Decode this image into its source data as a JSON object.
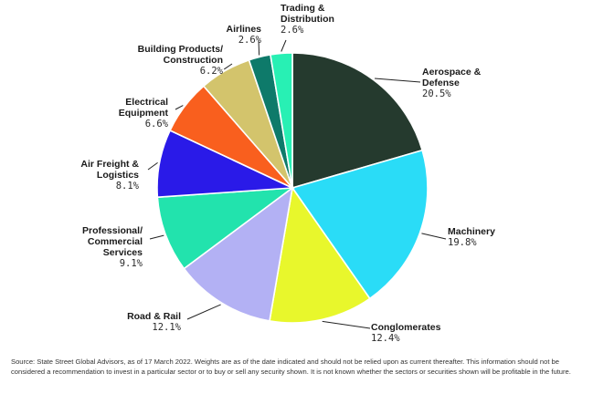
{
  "chart_data": {
    "type": "pie",
    "title": "",
    "slices": [
      {
        "label": [
          "Aerospace &",
          "Defense"
        ],
        "value": 20.5,
        "value_text": "20.5%",
        "color": "#253a2e"
      },
      {
        "label": [
          "Machinery"
        ],
        "value": 19.8,
        "value_text": "19.8%",
        "color": "#2adcf7"
      },
      {
        "label": [
          "Conglomerates"
        ],
        "value": 12.4,
        "value_text": "12.4%",
        "color": "#e8f72c"
      },
      {
        "label": [
          "Road & Rail"
        ],
        "value": 12.1,
        "value_text": "12.1%",
        "color": "#b3b1f4"
      },
      {
        "label": [
          "Professional/",
          "Commercial",
          "Services"
        ],
        "value": 9.1,
        "value_text": "9.1%",
        "color": "#22e3ad"
      },
      {
        "label": [
          "Air Freight &",
          "Logistics"
        ],
        "value": 8.1,
        "value_text": "8.1%",
        "color": "#2a1ae8"
      },
      {
        "label": [
          "Electrical",
          "Equipment"
        ],
        "value": 6.6,
        "value_text": "6.6%",
        "color": "#f95f1e"
      },
      {
        "label": [
          "Building Products/",
          "Construction"
        ],
        "value": 6.2,
        "value_text": "6.2%",
        "color": "#d3c46c"
      },
      {
        "label": [
          "Airlines"
        ],
        "value": 2.6,
        "value_text": "2.6%",
        "color": "#0e7a6a"
      },
      {
        "label": [
          "Trading &",
          "Distribution"
        ],
        "value": 2.6,
        "value_text": "2.6%",
        "color": "#28f0b4"
      }
    ]
  },
  "source_note": "Source: State Street Global Advisors, as of 17 March 2022. Weights are as of the date indicated and should not be relied upon as current thereafter. This information should not be considered a recommendation to invest in a particular sector or to buy or sell any security shown. It is not known whether the sectors or securities shown will be profitable in the future."
}
